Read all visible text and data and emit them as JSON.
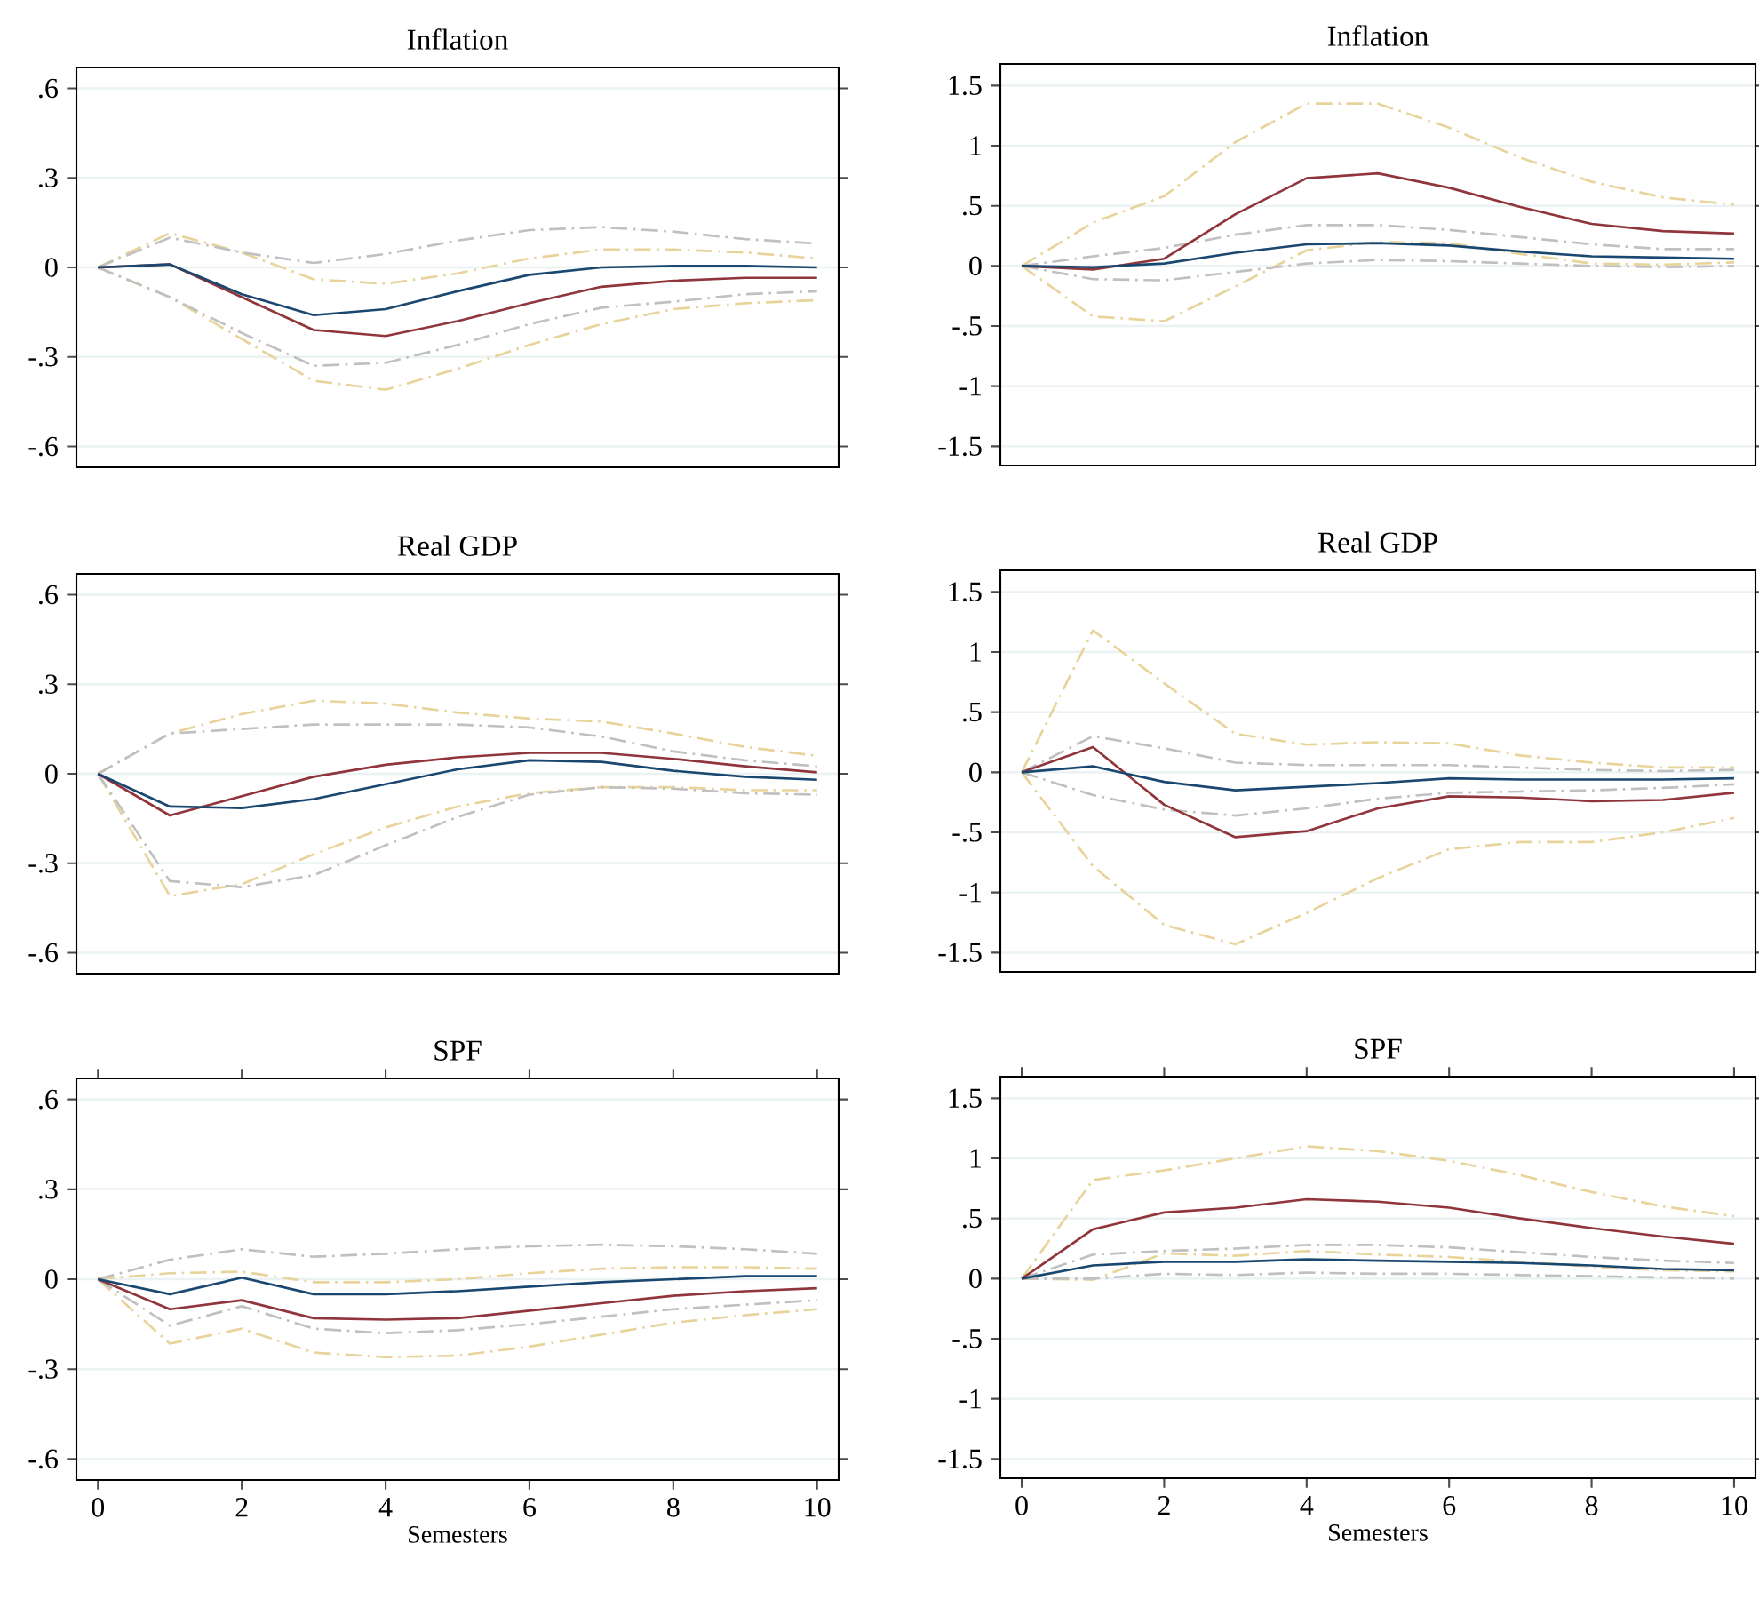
{
  "chart_data": [
    {
      "type": "line",
      "title": "Inflation",
      "x": [
        0,
        1,
        2,
        3,
        4,
        5,
        6,
        7,
        8,
        9,
        10
      ],
      "xlim": [
        -0.3,
        10.3
      ],
      "ylim": [
        -0.67,
        0.67
      ],
      "yticks": [
        {
          "value": -0.6,
          "label": "-.6"
        },
        {
          "value": -0.3,
          "label": "-.3"
        },
        0,
        {
          "value": 0.3,
          "label": ".3"
        },
        {
          "value": 0.6,
          "label": ".6"
        }
      ],
      "grid": "y",
      "tick_labels": "y",
      "series": [
        {
          "color": "#e8d49b",
          "line_style": "dashdot",
          "values": [
            0,
            0.115,
            0.05,
            -0.04,
            -0.055,
            -0.02,
            0.03,
            0.06,
            0.06,
            0.05,
            0.03
          ]
        },
        {
          "color": "#e8d49b",
          "line_style": "dashdot",
          "values": [
            0,
            -0.1,
            -0.24,
            -0.38,
            -0.41,
            -0.34,
            -0.26,
            -0.19,
            -0.14,
            -0.12,
            -0.11
          ]
        },
        {
          "color": "#c0c0c0",
          "line_style": "dashdot",
          "values": [
            0,
            0.1,
            0.05,
            0.015,
            0.045,
            0.09,
            0.125,
            0.135,
            0.12,
            0.095,
            0.08
          ]
        },
        {
          "color": "#c0c0c0",
          "line_style": "dashdot",
          "values": [
            0,
            -0.1,
            -0.22,
            -0.33,
            -0.32,
            -0.26,
            -0.19,
            -0.135,
            -0.115,
            -0.09,
            -0.08
          ]
        },
        {
          "color": "#90353b",
          "line_style": "solid",
          "values": [
            0,
            0.01,
            -0.1,
            -0.21,
            -0.23,
            -0.18,
            -0.12,
            -0.065,
            -0.045,
            -0.035,
            -0.035
          ]
        },
        {
          "color": "#1a476f",
          "line_style": "solid",
          "values": [
            0,
            0.01,
            -0.09,
            -0.16,
            -0.14,
            -0.08,
            -0.025,
            0,
            0.005,
            0.005,
            0
          ]
        }
      ]
    },
    {
      "type": "line",
      "title": "Inflation",
      "x": [
        0,
        1,
        2,
        3,
        4,
        5,
        6,
        7,
        8,
        9,
        10
      ],
      "xlim": [
        -0.3,
        10.3
      ],
      "ylim": [
        -1.66,
        1.68
      ],
      "yticks": [
        -1.5,
        -1,
        {
          "value": -0.5,
          "label": "-.5"
        },
        0,
        {
          "value": 0.5,
          "label": ".5"
        },
        1,
        1.5
      ],
      "grid": "y",
      "tick_labels": "y",
      "series": [
        {
          "color": "#e8d49b",
          "line_style": "dashdot",
          "values": [
            0,
            0.36,
            0.58,
            1.03,
            1.35,
            1.35,
            1.15,
            0.9,
            0.7,
            0.57,
            0.51
          ]
        },
        {
          "color": "#e8d49b",
          "line_style": "dashdot",
          "values": [
            0,
            -0.42,
            -0.46,
            -0.17,
            0.13,
            0.2,
            0.19,
            0.1,
            0.02,
            0.01,
            0.03
          ]
        },
        {
          "color": "#c0c0c0",
          "line_style": "dashdot",
          "values": [
            0,
            0.08,
            0.15,
            0.26,
            0.34,
            0.34,
            0.3,
            0.24,
            0.18,
            0.14,
            0.14
          ]
        },
        {
          "color": "#c0c0c0",
          "line_style": "dashdot",
          "values": [
            0,
            -0.11,
            -0.12,
            -0.05,
            0.02,
            0.05,
            0.04,
            0.02,
            0.0,
            -0.01,
            0.0
          ]
        },
        {
          "color": "#90353b",
          "line_style": "solid",
          "values": [
            0,
            -0.03,
            0.06,
            0.43,
            0.73,
            0.77,
            0.65,
            0.49,
            0.35,
            0.29,
            0.27
          ]
        },
        {
          "color": "#1a476f",
          "line_style": "solid",
          "values": [
            0,
            -0.01,
            0.02,
            0.11,
            0.18,
            0.19,
            0.17,
            0.12,
            0.08,
            0.07,
            0.06
          ]
        }
      ]
    },
    {
      "type": "line",
      "title": "Real GDP",
      "x": [
        0,
        1,
        2,
        3,
        4,
        5,
        6,
        7,
        8,
        9,
        10
      ],
      "xlim": [
        -0.3,
        10.3
      ],
      "ylim": [
        -0.67,
        0.67
      ],
      "yticks": [
        {
          "value": -0.6,
          "label": "-.6"
        },
        {
          "value": -0.3,
          "label": "-.3"
        },
        0,
        {
          "value": 0.3,
          "label": ".3"
        },
        {
          "value": 0.6,
          "label": ".6"
        }
      ],
      "grid": "y",
      "tick_labels": "y",
      "series": [
        {
          "color": "#e8d49b",
          "line_style": "dashdot",
          "values": [
            0,
            0.135,
            0.2,
            0.245,
            0.235,
            0.205,
            0.185,
            0.175,
            0.135,
            0.09,
            0.06
          ]
        },
        {
          "color": "#e8d49b",
          "line_style": "dashdot",
          "values": [
            0,
            -0.41,
            -0.37,
            -0.27,
            -0.18,
            -0.11,
            -0.065,
            -0.045,
            -0.045,
            -0.055,
            -0.055
          ]
        },
        {
          "color": "#c0c0c0",
          "line_style": "dashdot",
          "values": [
            0,
            0.135,
            0.15,
            0.165,
            0.165,
            0.165,
            0.155,
            0.125,
            0.075,
            0.045,
            0.025
          ]
        },
        {
          "color": "#c0c0c0",
          "line_style": "dashdot",
          "values": [
            0,
            -0.36,
            -0.38,
            -0.34,
            -0.24,
            -0.145,
            -0.07,
            -0.045,
            -0.05,
            -0.065,
            -0.07
          ]
        },
        {
          "color": "#90353b",
          "line_style": "solid",
          "values": [
            0,
            -0.14,
            -0.075,
            -0.01,
            0.03,
            0.055,
            0.07,
            0.07,
            0.05,
            0.025,
            0.005
          ]
        },
        {
          "color": "#1a476f",
          "line_style": "solid",
          "values": [
            0,
            -0.11,
            -0.115,
            -0.085,
            -0.035,
            0.015,
            0.045,
            0.04,
            0.01,
            -0.01,
            -0.02
          ]
        }
      ]
    },
    {
      "type": "line",
      "title": "Real GDP",
      "x": [
        0,
        1,
        2,
        3,
        4,
        5,
        6,
        7,
        8,
        9,
        10
      ],
      "xlim": [
        -0.3,
        10.3
      ],
      "ylim": [
        -1.66,
        1.68
      ],
      "yticks": [
        -1.5,
        -1,
        {
          "value": -0.5,
          "label": "-.5"
        },
        0,
        {
          "value": 0.5,
          "label": ".5"
        },
        1,
        1.5
      ],
      "grid": "y",
      "tick_labels": "y",
      "series": [
        {
          "color": "#e8d49b",
          "line_style": "dashdot",
          "values": [
            0,
            1.18,
            0.74,
            0.32,
            0.23,
            0.25,
            0.24,
            0.14,
            0.08,
            0.04,
            0.04
          ]
        },
        {
          "color": "#e8d49b",
          "line_style": "dashdot",
          "values": [
            0,
            -0.78,
            -1.27,
            -1.43,
            -1.17,
            -0.88,
            -0.64,
            -0.58,
            -0.58,
            -0.5,
            -0.38
          ]
        },
        {
          "color": "#c0c0c0",
          "line_style": "dashdot",
          "values": [
            0,
            0.3,
            0.2,
            0.08,
            0.06,
            0.06,
            0.06,
            0.04,
            0.02,
            0.01,
            0.02
          ]
        },
        {
          "color": "#c0c0c0",
          "line_style": "dashdot",
          "values": [
            0,
            -0.19,
            -0.31,
            -0.36,
            -0.3,
            -0.22,
            -0.17,
            -0.16,
            -0.15,
            -0.13,
            -0.1
          ]
        },
        {
          "color": "#90353b",
          "line_style": "solid",
          "values": [
            0,
            0.21,
            -0.27,
            -0.54,
            -0.49,
            -0.3,
            -0.2,
            -0.21,
            -0.24,
            -0.23,
            -0.17
          ]
        },
        {
          "color": "#1a476f",
          "line_style": "solid",
          "values": [
            0,
            0.05,
            -0.08,
            -0.15,
            -0.12,
            -0.09,
            -0.05,
            -0.06,
            -0.06,
            -0.06,
            -0.05
          ]
        }
      ]
    },
    {
      "type": "line",
      "title": "SPF",
      "xlabel": "Semesters",
      "x": [
        0,
        1,
        2,
        3,
        4,
        5,
        6,
        7,
        8,
        9,
        10
      ],
      "xlim": [
        -0.3,
        10.3
      ],
      "xticks": [
        0,
        2,
        4,
        6,
        8,
        10
      ],
      "ylim": [
        -0.67,
        0.67
      ],
      "yticks": [
        {
          "value": -0.6,
          "label": "-.6"
        },
        {
          "value": -0.3,
          "label": "-.3"
        },
        0,
        {
          "value": 0.3,
          "label": ".3"
        },
        {
          "value": 0.6,
          "label": ".6"
        }
      ],
      "grid": "y",
      "series": [
        {
          "color": "#e8d49b",
          "line_style": "dashdot",
          "values": [
            0,
            0.02,
            0.025,
            -0.01,
            -0.01,
            0.0,
            0.02,
            0.035,
            0.04,
            0.04,
            0.035
          ]
        },
        {
          "color": "#e8d49b",
          "line_style": "dashdot",
          "values": [
            0,
            -0.215,
            -0.165,
            -0.245,
            -0.26,
            -0.255,
            -0.225,
            -0.185,
            -0.145,
            -0.12,
            -0.1
          ]
        },
        {
          "color": "#c0c0c0",
          "line_style": "dashdot",
          "values": [
            0,
            0.065,
            0.1,
            0.075,
            0.085,
            0.1,
            0.11,
            0.115,
            0.11,
            0.1,
            0.085
          ]
        },
        {
          "color": "#c0c0c0",
          "line_style": "dashdot",
          "values": [
            0,
            -0.155,
            -0.09,
            -0.165,
            -0.18,
            -0.17,
            -0.15,
            -0.125,
            -0.1,
            -0.085,
            -0.07
          ]
        },
        {
          "color": "#90353b",
          "line_style": "solid",
          "values": [
            0,
            -0.1,
            -0.07,
            -0.13,
            -0.135,
            -0.13,
            -0.105,
            -0.08,
            -0.055,
            -0.04,
            -0.03
          ]
        },
        {
          "color": "#1a476f",
          "line_style": "solid",
          "values": [
            0,
            -0.05,
            0.005,
            -0.05,
            -0.05,
            -0.04,
            -0.025,
            -0.01,
            0.0,
            0.01,
            0.01
          ]
        }
      ]
    },
    {
      "type": "line",
      "title": "SPF",
      "xlabel": "Semesters",
      "x": [
        0,
        1,
        2,
        3,
        4,
        5,
        6,
        7,
        8,
        9,
        10
      ],
      "xlim": [
        -0.3,
        10.3
      ],
      "xticks": [
        0,
        2,
        4,
        6,
        8,
        10
      ],
      "ylim": [
        -1.66,
        1.68
      ],
      "yticks": [
        -1.5,
        -1,
        {
          "value": -0.5,
          "label": "-.5"
        },
        0,
        {
          "value": 0.5,
          "label": ".5"
        },
        1,
        1.5
      ],
      "grid": "y",
      "series": [
        {
          "color": "#e8d49b",
          "line_style": "dashdot",
          "values": [
            0,
            0.82,
            0.9,
            1.0,
            1.1,
            1.06,
            0.98,
            0.86,
            0.72,
            0.6,
            0.52
          ]
        },
        {
          "color": "#e8d49b",
          "line_style": "dashdot",
          "values": [
            0,
            -0.01,
            0.21,
            0.19,
            0.23,
            0.2,
            0.18,
            0.14,
            0.1,
            0.07,
            0.06
          ]
        },
        {
          "color": "#c0c0c0",
          "line_style": "dashdot",
          "values": [
            0,
            0.2,
            0.23,
            0.25,
            0.28,
            0.28,
            0.26,
            0.22,
            0.18,
            0.15,
            0.13
          ]
        },
        {
          "color": "#c0c0c0",
          "line_style": "dashdot",
          "values": [
            0,
            0.0,
            0.04,
            0.03,
            0.05,
            0.04,
            0.04,
            0.03,
            0.02,
            0.01,
            0.0
          ]
        },
        {
          "color": "#90353b",
          "line_style": "solid",
          "values": [
            0,
            0.41,
            0.55,
            0.59,
            0.66,
            0.64,
            0.59,
            0.5,
            0.42,
            0.35,
            0.29
          ]
        },
        {
          "color": "#1a476f",
          "line_style": "solid",
          "values": [
            0,
            0.11,
            0.14,
            0.14,
            0.16,
            0.15,
            0.14,
            0.13,
            0.11,
            0.08,
            0.07
          ]
        }
      ]
    }
  ]
}
